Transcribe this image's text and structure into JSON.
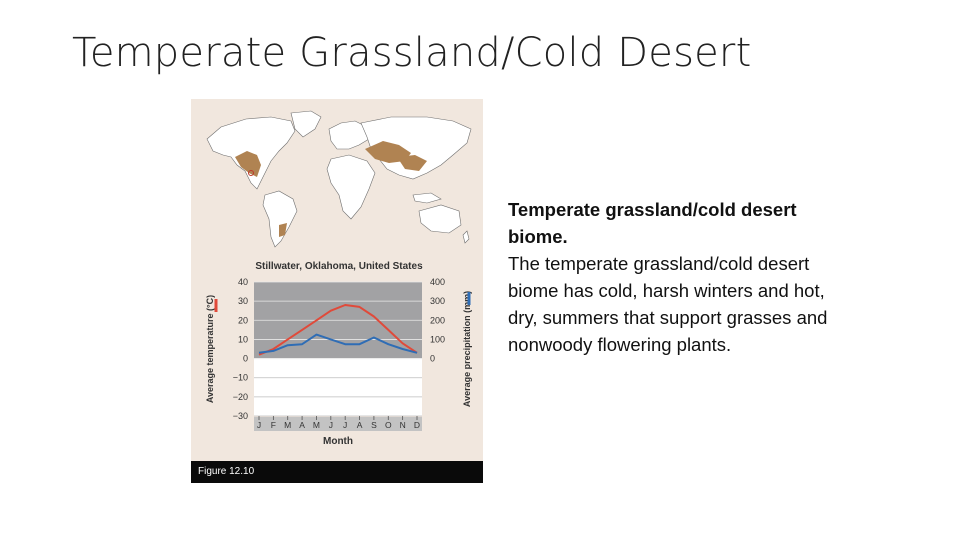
{
  "slide": {
    "title": "Temperate Grassland/Cold Desert"
  },
  "figure": {
    "caption": "Figure 12.10",
    "map_highlight_color": "#b08352"
  },
  "text": {
    "lead": "Temperate grassland/cold desert biome.",
    "body": "The temperate grassland/cold desert biome has cold, harsh winters and hot, dry, summers that support grasses and nonwoody flowering plants."
  },
  "chart_data": {
    "type": "line",
    "title": "Stillwater, Oklahoma, United States",
    "xlabel": "Month",
    "categories": [
      "J",
      "F",
      "M",
      "A",
      "M",
      "J",
      "J",
      "A",
      "S",
      "O",
      "N",
      "D"
    ],
    "y_left": {
      "label": "Average temperature (°C)",
      "range": [
        -30,
        40
      ],
      "ticks": [
        "40",
        "30",
        "20",
        "10",
        "0",
        "−10",
        "−20",
        "−30"
      ]
    },
    "y_right": {
      "label": "Average precipitation (mm)",
      "range": [
        0,
        400
      ],
      "ticks": [
        "400",
        "300",
        "200",
        "100",
        "0"
      ]
    },
    "series": [
      {
        "axis": "left",
        "color": "#e04a3a",
        "values": [
          2,
          5,
          10,
          15,
          20,
          25,
          28,
          27,
          22,
          15,
          8,
          3
        ]
      },
      {
        "axis": "right",
        "color": "#2f6db5",
        "values": [
          30,
          40,
          70,
          75,
          125,
          100,
          75,
          75,
          110,
          75,
          50,
          30
        ]
      }
    ],
    "grid": true
  }
}
